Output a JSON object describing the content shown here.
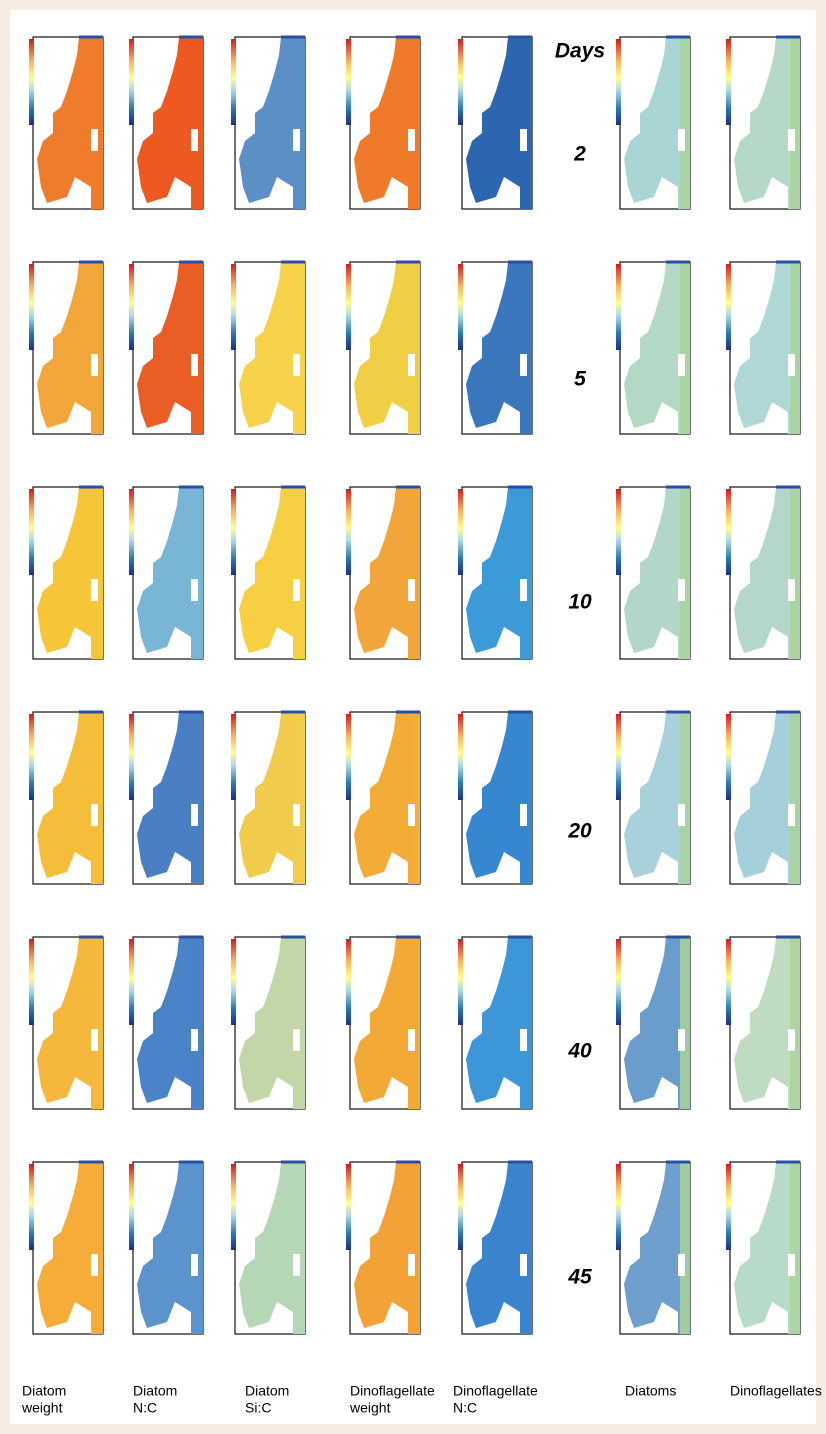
{
  "days_header": "Days",
  "rows": [
    "2",
    "5",
    "10",
    "20",
    "40",
    "45"
  ],
  "columns": [
    [
      "Diatom",
      "weight"
    ],
    [
      "Diatom",
      "N:C"
    ],
    [
      "Diatom",
      "Si:C"
    ],
    [
      "Dinoflagellate",
      "weight"
    ],
    [
      "Dinoflagellate",
      "N:C"
    ],
    [
      "Diatoms"
    ],
    [
      "Dinoflagellates"
    ]
  ]
}
